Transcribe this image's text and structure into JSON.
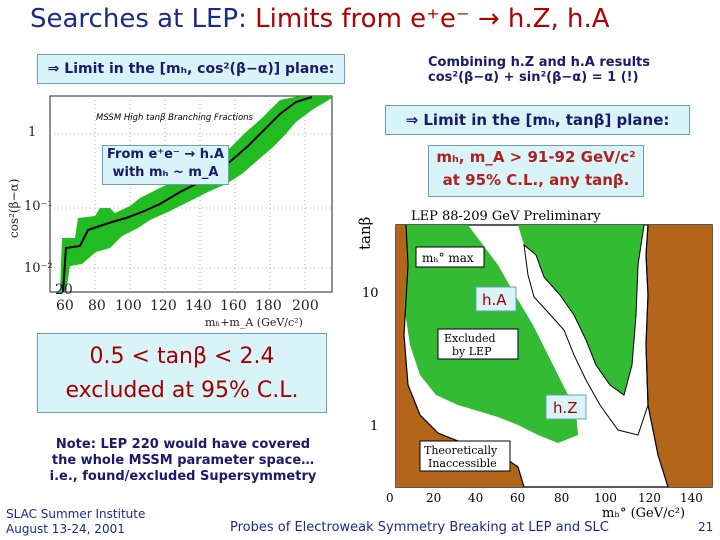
{
  "slide": {
    "title_prefix": "Searches at LEP:",
    "title_main": "Limits from e⁺e⁻ → h.Z, h.A",
    "box_left": "⇒ Limit in the [mₕ, cos²(β−α)] plane:",
    "combining_line1": "Combining h.Z and h.A results",
    "combining_line2": "cos²(β−α) + sin²(β−α) = 1 (!)",
    "box_right": "⇒ Limit in the [mₕ, tanβ] plane:",
    "from_box_line1": "From e⁺e⁻ → h.A",
    "from_box_line2": "with mₕ ~ m_A",
    "mass_box_line1": "mₕ, m_A > 91-92 GeV/c²",
    "mass_box_line2": "at 95% C.L., any tanβ.",
    "excluded_line1": "0.5 < tanβ < 2.4",
    "excluded_line2": "excluded at 95% C.L.",
    "note_line1": "Note: LEP 220 would have covered",
    "note_line2": "the whole MSSM parameter space…",
    "note_line3": "i.e., found/excluded Supersymmetry",
    "footer_left1": "SLAC Summer Institute",
    "footer_left2": "August 13-24, 2001",
    "footer_center": "Probes of Electroweak Symmetry Breaking at LEP and SLC",
    "page_number": "21"
  },
  "left_plot": {
    "ylabel": "cos²(β−α)",
    "legend": "MSSM High tanβ Branching Fractions",
    "y_ticks": [
      "1",
      "10⁻¹",
      "10⁻²"
    ],
    "x_ticks": [
      "20",
      "60",
      "80",
      "100",
      "120",
      "140",
      "160",
      "180",
      "200"
    ],
    "xlabel": "mₕ+m_A (GeV/c²)",
    "colors": {
      "band": "#22bb22",
      "line": "#000000"
    }
  },
  "right_plot": {
    "header": "LEP 88-209 GeV Preliminary",
    "ylabel": "tanβ",
    "y_ticks": [
      "10",
      "1"
    ],
    "x_ticks": [
      "0",
      "20",
      "40",
      "60",
      "80",
      "100",
      "120",
      "140"
    ],
    "xlabel": "mₕ° (GeV/c²)",
    "label_mhmax": "mₕ° max",
    "label_excluded_1": "Excluded",
    "label_excluded_2": "by LEP",
    "label_theory_1": "Theoretically",
    "label_theory_2": "Inaccessible",
    "label_hA": "h.A",
    "label_hZ": "h.Z",
    "colors": {
      "excluded": "#33bb33",
      "theory": "#b3661a"
    }
  }
}
